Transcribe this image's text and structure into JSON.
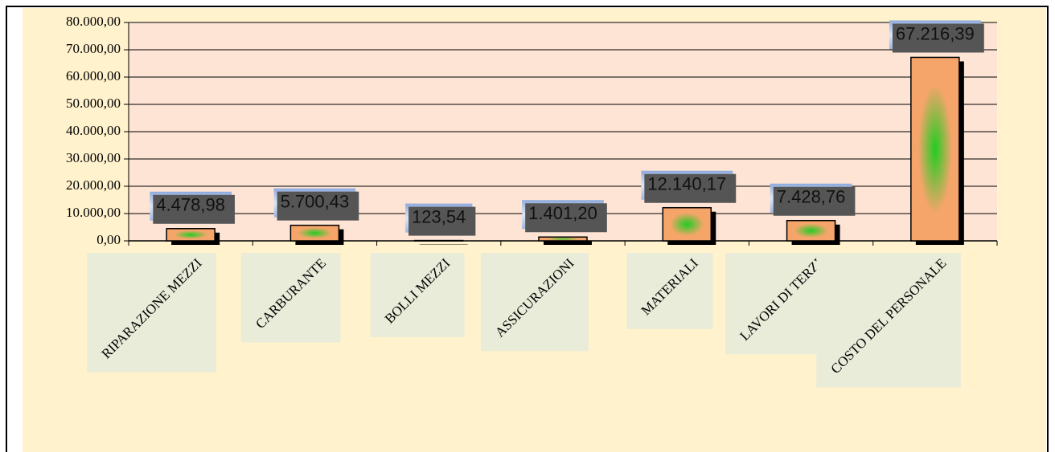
{
  "chart_data": {
    "type": "bar",
    "categories": [
      "RIPARAZIONE MEZZI",
      "CARBURANTE",
      "BOLLI MEZZI",
      "ASSICURAZIONI",
      "MATERIALI",
      "LAVORI DI TERZI",
      "COSTO DEL PERSONALE"
    ],
    "values": [
      4478.98,
      5700.43,
      123.54,
      1401.2,
      12140.17,
      7428.76,
      67216.39
    ],
    "value_labels": [
      "4.478,98",
      "5.700,43",
      "123,54",
      "1.401,20",
      "12.140,17",
      "7.428,76",
      "67.216,39"
    ],
    "color": "#f5a56a",
    "ylim": [
      0,
      80000
    ],
    "yticks": [
      {
        "value": 0,
        "label": "0,00"
      },
      {
        "value": 10000,
        "label": "10.000,00"
      },
      {
        "value": 20000,
        "label": "20.000,00"
      },
      {
        "value": 30000,
        "label": "30.000,00"
      },
      {
        "value": 40000,
        "label": "40.000,00"
      },
      {
        "value": 50000,
        "label": "50.000,00"
      },
      {
        "value": 60000,
        "label": "60.000,00"
      },
      {
        "value": 70000,
        "label": "70.000,00"
      },
      {
        "value": 80000,
        "label": "80.000,00"
      }
    ],
    "grid": true
  }
}
